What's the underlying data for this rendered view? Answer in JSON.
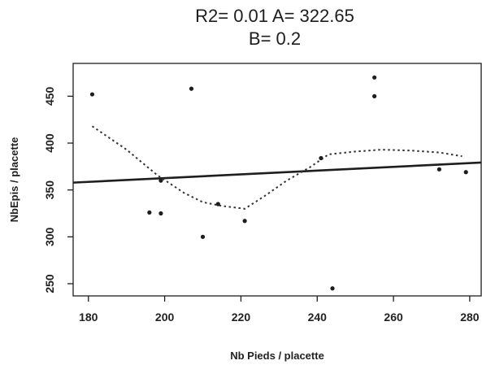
{
  "chart_data": {
    "type": "scatter",
    "title": "R2= 0.01 A= 322.65",
    "subtitle": "B= 0.2",
    "xlabel": "Nb Pieds / placette",
    "ylabel": "NbEpis / placette",
    "xlim": [
      176,
      283
    ],
    "ylim": [
      237,
      485
    ],
    "x_ticks": [
      180,
      200,
      220,
      240,
      260,
      280
    ],
    "y_ticks": [
      250,
      300,
      350,
      400,
      450
    ],
    "grid": false,
    "points": [
      {
        "x": 181,
        "y": 452
      },
      {
        "x": 196,
        "y": 326
      },
      {
        "x": 199,
        "y": 325
      },
      {
        "x": 199,
        "y": 360
      },
      {
        "x": 207,
        "y": 458
      },
      {
        "x": 210,
        "y": 300
      },
      {
        "x": 214,
        "y": 335
      },
      {
        "x": 221,
        "y": 317
      },
      {
        "x": 241,
        "y": 384
      },
      {
        "x": 244,
        "y": 245
      },
      {
        "x": 255,
        "y": 470
      },
      {
        "x": 255,
        "y": 450
      },
      {
        "x": 272,
        "y": 372
      },
      {
        "x": 279,
        "y": 369
      }
    ],
    "regression_line": {
      "style": "solid",
      "intercept": 322.65,
      "slope": 0.2,
      "x_range": [
        176,
        283
      ]
    },
    "smooth_curve": {
      "style": "dotted",
      "points": [
        {
          "x": 181,
          "y": 418
        },
        {
          "x": 190,
          "y": 393
        },
        {
          "x": 198,
          "y": 366
        },
        {
          "x": 205,
          "y": 347
        },
        {
          "x": 210,
          "y": 337
        },
        {
          "x": 215,
          "y": 333
        },
        {
          "x": 221,
          "y": 330
        },
        {
          "x": 226,
          "y": 343
        },
        {
          "x": 232,
          "y": 360
        },
        {
          "x": 238,
          "y": 374
        },
        {
          "x": 243,
          "y": 388
        },
        {
          "x": 250,
          "y": 391
        },
        {
          "x": 257,
          "y": 393
        },
        {
          "x": 265,
          "y": 392
        },
        {
          "x": 272,
          "y": 390
        },
        {
          "x": 278,
          "y": 386
        }
      ]
    }
  }
}
